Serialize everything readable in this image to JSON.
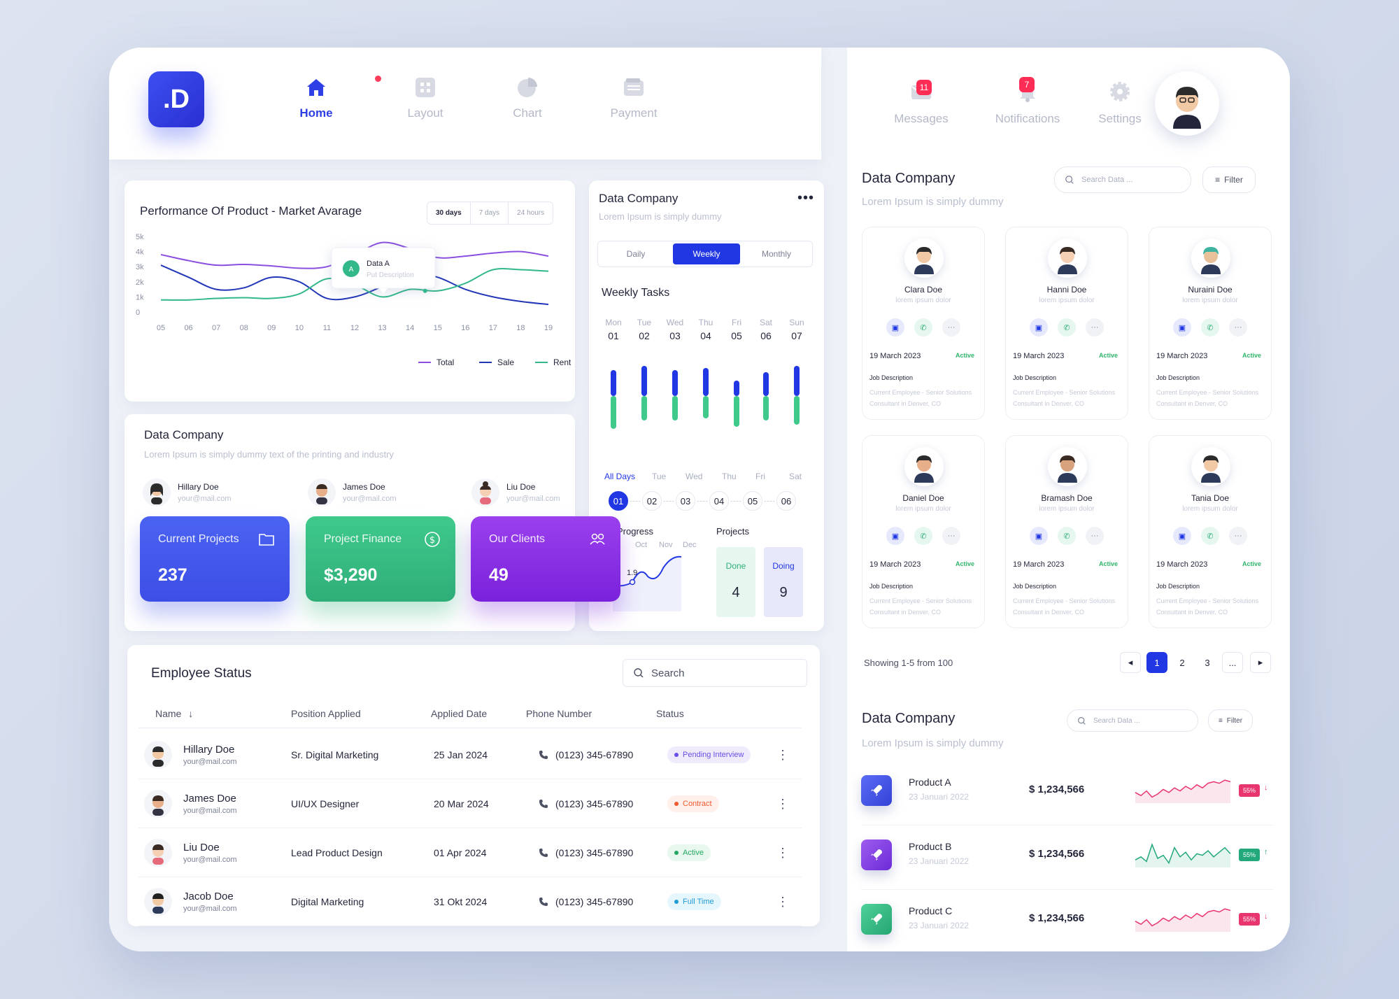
{
  "brand": {
    "logo": ".D"
  },
  "nav": [
    {
      "label": "Home",
      "icon": "home-icon"
    },
    {
      "label": "Layout",
      "icon": "grid-icon"
    },
    {
      "label": "Chart",
      "icon": "pie-chart-icon"
    },
    {
      "label": "Payment",
      "icon": "wallet-icon"
    }
  ],
  "right_nav": {
    "messages": {
      "label": "Messages",
      "count": "11"
    },
    "notifications": {
      "label": "Notifications",
      "count": "7"
    },
    "settings": {
      "label": "Settings"
    }
  },
  "performance": {
    "title": "Performance Of Product - Market Avarage",
    "ranges": [
      "30 days",
      "7 days",
      "24 hours"
    ],
    "tooltip": {
      "badge": "A",
      "title": "Data A",
      "desc": "Put Description"
    }
  },
  "chart_data": {
    "type": "line",
    "x": [
      "05",
      "06",
      "07",
      "08",
      "09",
      "10",
      "11",
      "12",
      "13",
      "14",
      "15",
      "16",
      "17",
      "18",
      "19"
    ],
    "yticks": [
      "5k",
      "4k",
      "3k",
      "2k",
      "1k",
      "0"
    ],
    "ylim": [
      0,
      5000
    ],
    "series": [
      {
        "name": "Total",
        "color": "#8a4fe0",
        "values": [
          3800,
          3400,
          3100,
          3150,
          3050,
          2900,
          3000,
          3800,
          4600,
          4200,
          3600,
          3700,
          3900,
          4000,
          3700
        ]
      },
      {
        "name": "Sale",
        "color": "#2236b8",
        "values": [
          3100,
          2300,
          1500,
          1600,
          2300,
          2000,
          900,
          1000,
          1700,
          2600,
          2300,
          1500,
          1000,
          700,
          500
        ]
      },
      {
        "name": "Rent",
        "color": "#32b889",
        "values": [
          800,
          800,
          900,
          950,
          900,
          1200,
          2200,
          1800,
          1000,
          1500,
          1400,
          1900,
          2800,
          2800,
          2700
        ]
      }
    ]
  },
  "data_company_mid": {
    "title": "Data Company",
    "subtitle": "Lorem Ipsum is simply dummy text of the printing and industry",
    "people": [
      {
        "name": "Hillary Doe",
        "email": "your@mail.com"
      },
      {
        "name": "James Doe",
        "email": "your@mail.com"
      },
      {
        "name": "Liu Doe",
        "email": "your@mail.com"
      }
    ],
    "stats": [
      {
        "label": "Current Projects",
        "value": "237"
      },
      {
        "label": "Project Finance",
        "value": "$3,290"
      },
      {
        "label": "Our Clients",
        "value": "49"
      }
    ]
  },
  "weekly": {
    "title": "Data Company",
    "subtitle": "Lorem Ipsum is simply dummy",
    "tabs": [
      "Daily",
      "Weekly",
      "Monthly"
    ],
    "tasks_title": "Weekly Tasks",
    "days": [
      {
        "d": "Mon",
        "n": "01"
      },
      {
        "d": "Tue",
        "n": "02"
      },
      {
        "d": "Wed",
        "n": "03"
      },
      {
        "d": "Thu",
        "n": "04"
      },
      {
        "d": "Fri",
        "n": "05"
      },
      {
        "d": "Sat",
        "n": "06"
      },
      {
        "d": "Sun",
        "n": "07"
      }
    ],
    "bars": [
      {
        "blue": 0.45,
        "green": 0.55
      },
      {
        "blue": 0.55,
        "green": 0.35
      },
      {
        "blue": 0.45,
        "green": 0.35
      },
      {
        "blue": 0.5,
        "green": 0.3
      },
      {
        "blue": 0.2,
        "green": 0.5
      },
      {
        "blue": 0.4,
        "green": 0.35
      },
      {
        "blue": 0.55,
        "green": 0.45
      }
    ],
    "filter_days": [
      "All Days",
      "Tue",
      "Wed",
      "Thu",
      "Fri",
      "Sat"
    ],
    "filter_nums": [
      "01",
      "02",
      "03",
      "04",
      "05",
      "06"
    ],
    "progress_label": "Progress",
    "months": [
      "Oct",
      "Nov",
      "Dec"
    ],
    "progress_value": "1.9",
    "projects_label": "Projects",
    "done": {
      "label": "Done",
      "count": "4"
    },
    "doing": {
      "label": "Doing",
      "count": "9"
    }
  },
  "employee_status": {
    "title": "Employee Status",
    "search_placeholder": "Search",
    "columns": [
      "Name",
      "Position Applied",
      "Applied Date",
      "Phone Number",
      "Status"
    ],
    "rows": [
      {
        "name": "Hillary Doe",
        "email": "your@mail.com",
        "position": "Sr. Digital Marketing",
        "date": "25 Jan 2024",
        "phone": "(0123) 345-67890",
        "status": "Pending Interview",
        "status_color": "#6c4ce6",
        "status_bg": "#efebfd"
      },
      {
        "name": "James Doe",
        "email": "your@mail.com",
        "position": "UI/UX Designer",
        "date": "20 Mar 2024",
        "phone": "(0123) 345-67890",
        "status": "Contract",
        "status_color": "#f2572d",
        "status_bg": "#fff0eb"
      },
      {
        "name": "Liu Doe",
        "email": "your@mail.com",
        "position": "Lead Product  Design",
        "date": "01 Apr 2024",
        "phone": "(0123) 345-67890",
        "status": "Active",
        "status_color": "#22a862",
        "status_bg": "#e8f8ee"
      },
      {
        "name": "Jacob Doe",
        "email": "your@mail.com",
        "position": "Digital Marketing",
        "date": "31 Okt 2024",
        "phone": "(0123) 345-67890",
        "status": "Full Time",
        "status_color": "#1f9bd6",
        "status_bg": "#e6f6fd"
      }
    ]
  },
  "company_cards": {
    "title": "Data Company",
    "subtitle": "Lorem Ipsum is simply dummy",
    "search_placeholder": "Search Data ...",
    "filter": "Filter",
    "cards": [
      {
        "name": "Clara Doe",
        "sub": "lorem ipsum dolor",
        "date": "19 March 2023",
        "status": "Active",
        "jd": "Job Description",
        "jt": "Current Employee - Senior Solutions Consultant in Denver, CO"
      },
      {
        "name": "Hanni Doe",
        "sub": "lorem ipsum dolor",
        "date": "19 March 2023",
        "status": "Active",
        "jd": "Job Description",
        "jt": "Current Employee - Senior Solutions Consultant in Denver, CO"
      },
      {
        "name": "Nuraini Doe",
        "sub": "lorem ipsum dolor",
        "date": "19 March 2023",
        "status": "Active",
        "jd": "Job Description",
        "jt": "Current Employee - Senior Solutions Consultant in Denver, CO"
      },
      {
        "name": "Daniel Doe",
        "sub": "lorem ipsum dolor",
        "date": "19 March 2023",
        "status": "Active",
        "jd": "Job Description",
        "jt": "Current Employee - Senior Solutions Consultant in Denver, CO"
      },
      {
        "name": "Bramash Doe",
        "sub": "lorem ipsum dolor",
        "date": "19 March 2023",
        "status": "Active",
        "jd": "Job Description",
        "jt": "Current Employee - Senior Solutions Consultant in Denver, CO"
      },
      {
        "name": "Tania Doe",
        "sub": "lorem ipsum dolor",
        "date": "19 March 2023",
        "status": "Active",
        "jd": "Job Description",
        "jt": "Current Employee - Senior Solutions Consultant in Denver, CO"
      }
    ],
    "showing": "Showing 1-5 from 100",
    "pages": [
      "1",
      "2",
      "3",
      "..."
    ]
  },
  "products": {
    "title": "Data Company",
    "subtitle": "Lorem Ipsum is simply dummy",
    "search_placeholder": "Search Data ...",
    "filter": "Filter",
    "items": [
      {
        "name": "Product A",
        "date": "23 Januari 2022",
        "value": "$ 1,234,566",
        "pct": "55%",
        "trend": "down",
        "color": "#e8356d",
        "icon_bg": "linear-gradient(135deg,#5b6cf5,#3341d6)"
      },
      {
        "name": "Product B",
        "date": "23 Januari 2022",
        "value": "$ 1,234,566",
        "pct": "55%",
        "trend": "up",
        "color": "#22a87a",
        "icon_bg": "linear-gradient(135deg,#9f5cf0,#6b2bd6)"
      },
      {
        "name": "Product C",
        "date": "23 Januari 2022",
        "value": "$ 1,234,566",
        "pct": "55%",
        "trend": "down",
        "color": "#e8356d",
        "icon_bg": "linear-gradient(135deg,#4fd19a,#25a572)"
      }
    ]
  }
}
